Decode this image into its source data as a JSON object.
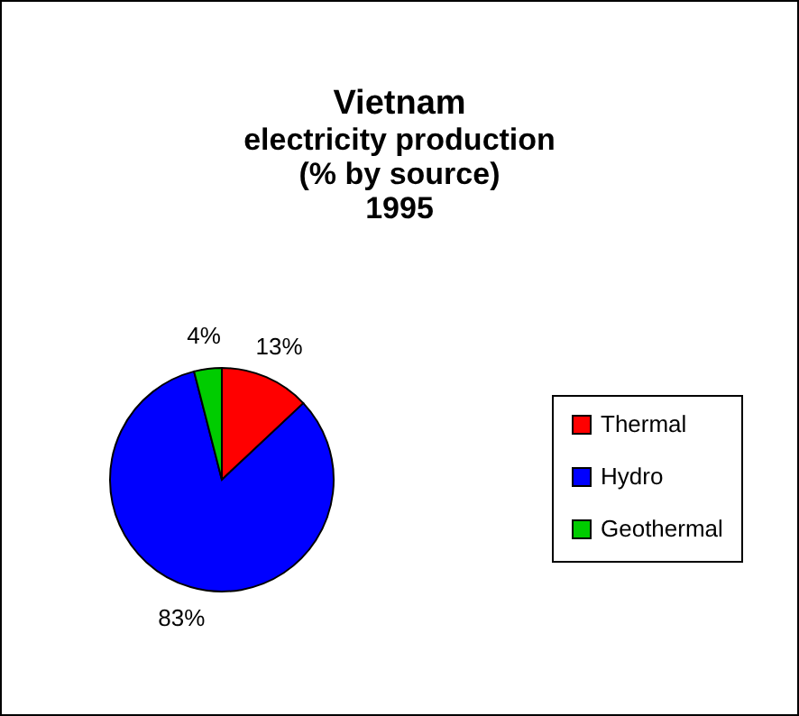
{
  "chart_data": {
    "type": "pie",
    "title": "Vietnam",
    "subtitle": "electricity production\n(% by source)\n1995",
    "categories": [
      "Thermal",
      "Hydro",
      "Geothermal"
    ],
    "values": [
      13,
      83,
      4
    ],
    "colors": [
      "#ff0000",
      "#0000ff",
      "#00cc00"
    ],
    "value_labels": [
      "13%",
      "83%",
      "4%"
    ],
    "legend": "right"
  }
}
